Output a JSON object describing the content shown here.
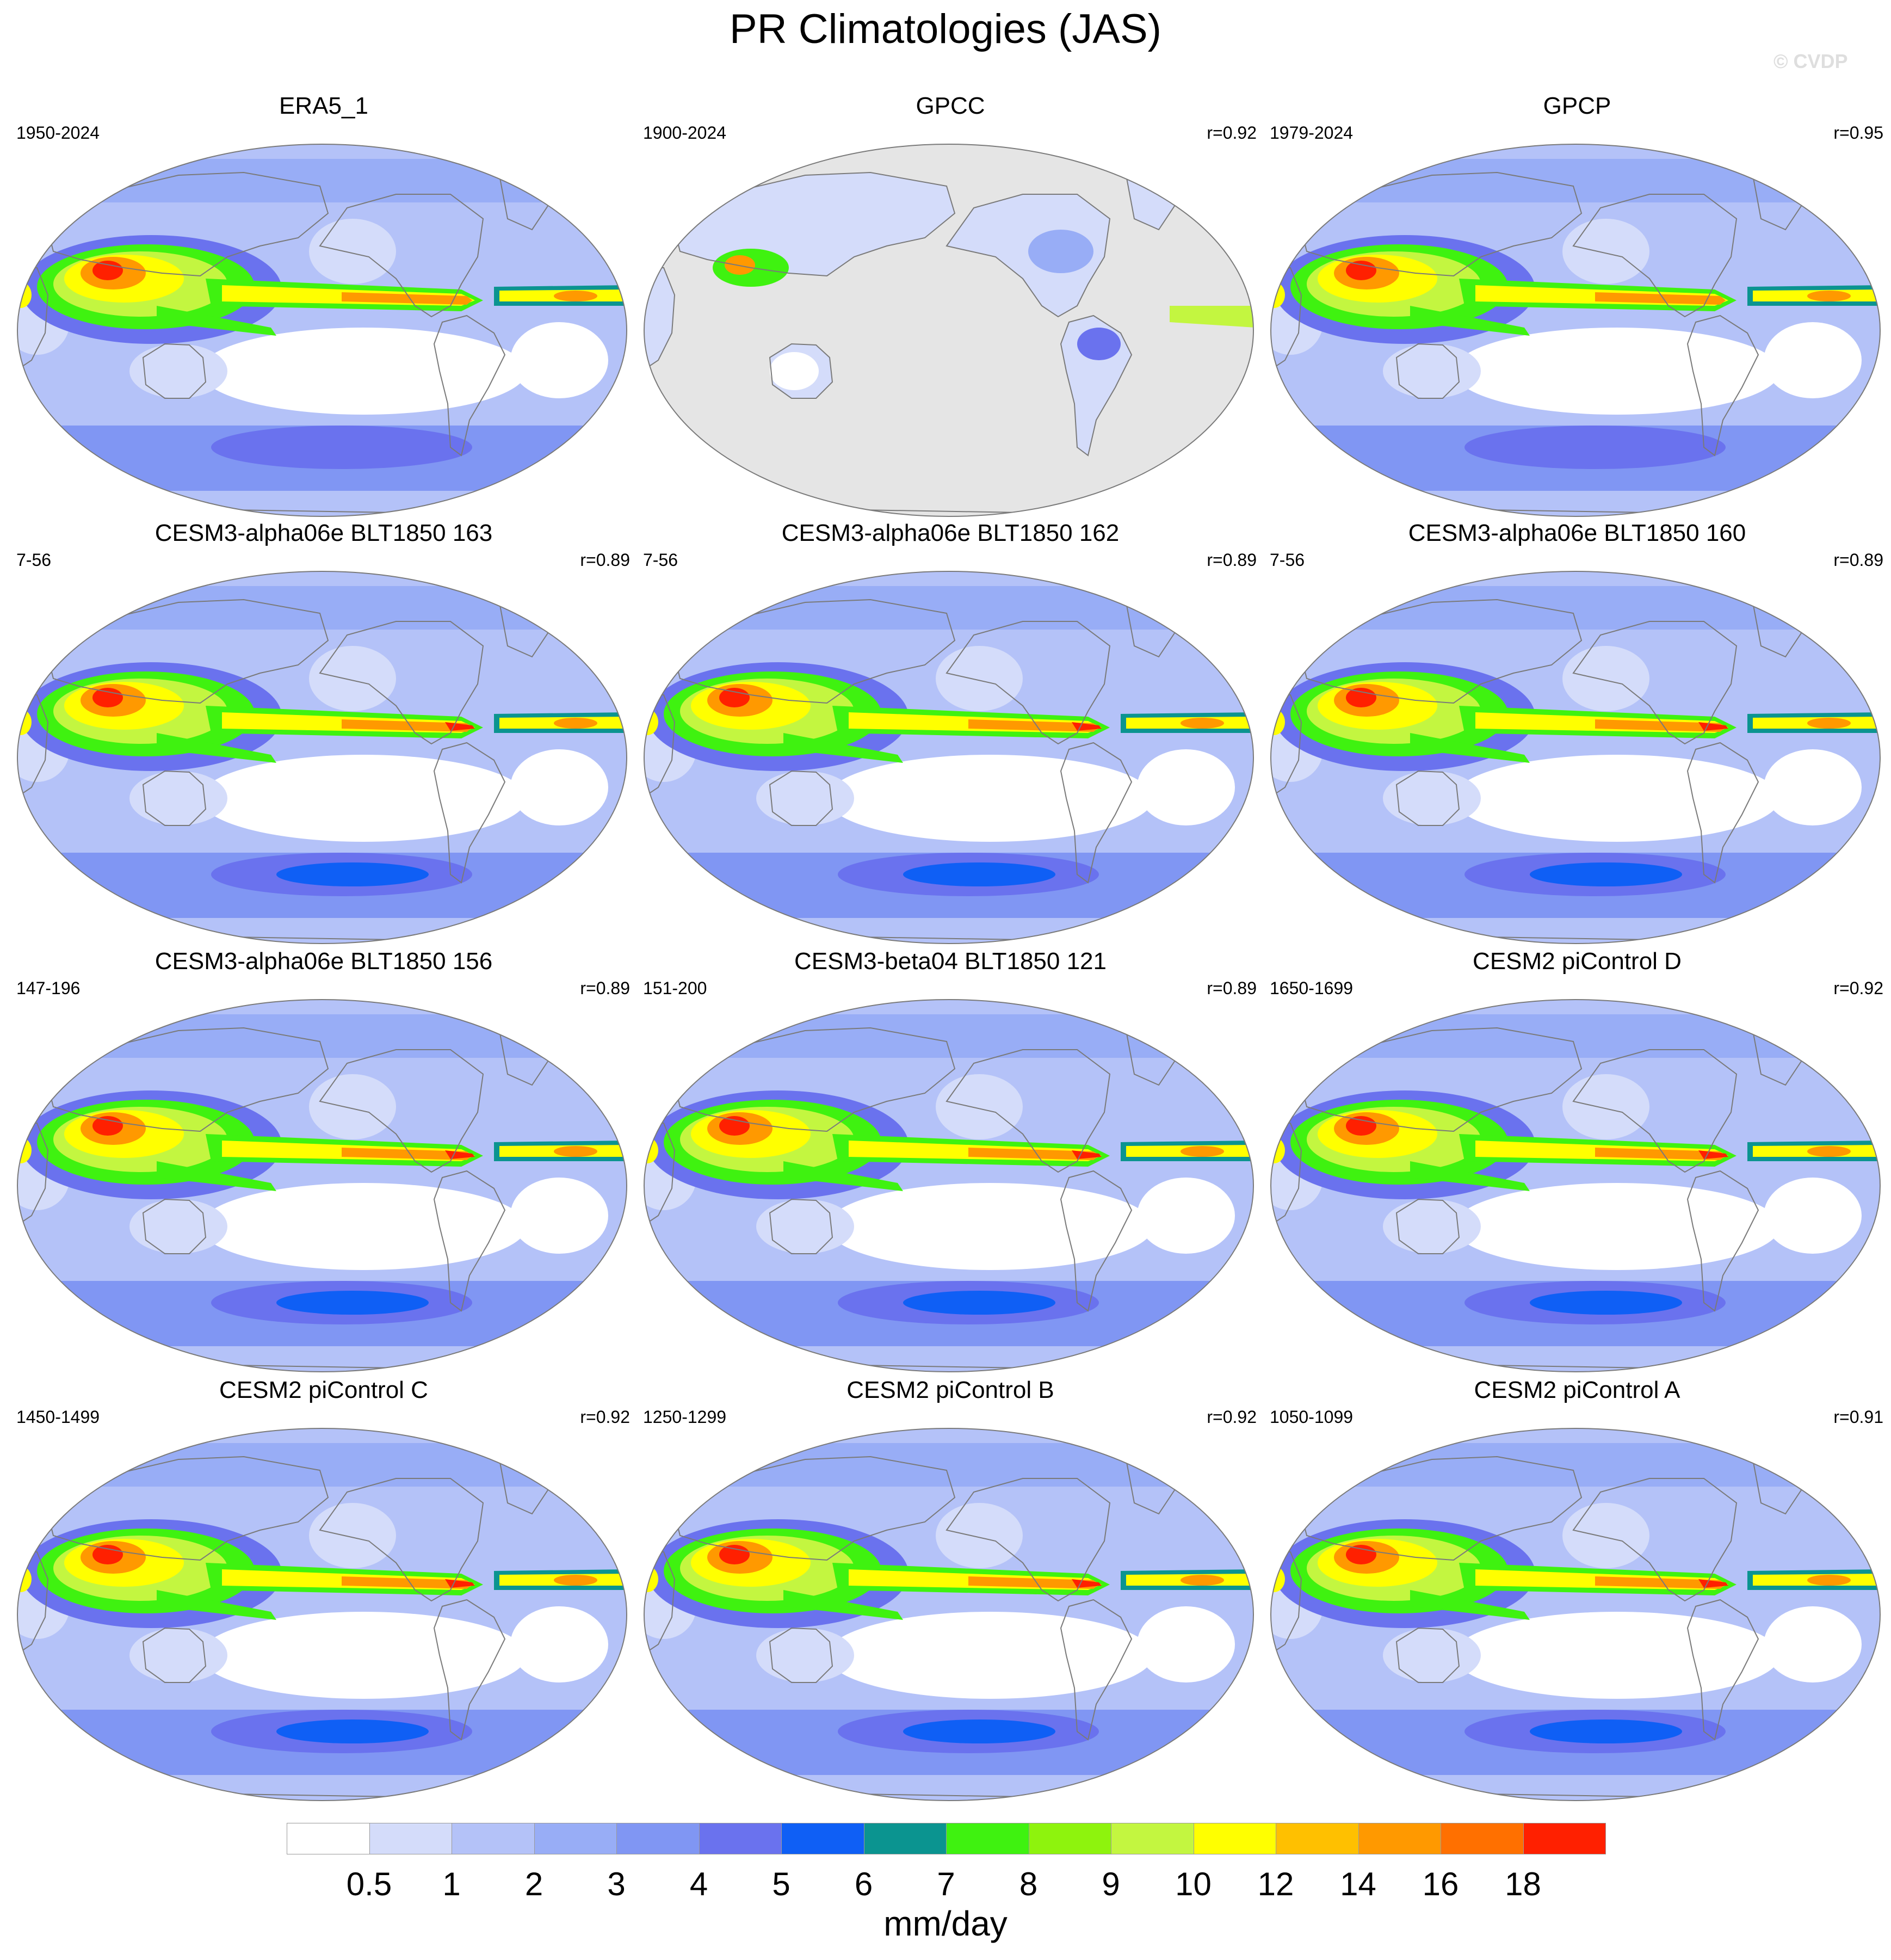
{
  "figure": {
    "title": "PR Climatologies (JAS)",
    "watermark": "© CVDP"
  },
  "panels": [
    {
      "title": "ERA5_1",
      "years": "1950-2024",
      "r": "",
      "variant": "era5"
    },
    {
      "title": "GPCC",
      "years": "1900-2024",
      "r": "r=0.92",
      "variant": "gpcc"
    },
    {
      "title": "GPCP",
      "years": "1979-2024",
      "r": "r=0.95",
      "variant": "gpcp"
    },
    {
      "title": "CESM3-alpha06e BLT1850 163",
      "years": "7-56",
      "r": "r=0.89",
      "variant": "model"
    },
    {
      "title": "CESM3-alpha06e BLT1850 162",
      "years": "7-56",
      "r": "r=0.89",
      "variant": "model"
    },
    {
      "title": "CESM3-alpha06e BLT1850 160",
      "years": "7-56",
      "r": "r=0.89",
      "variant": "model"
    },
    {
      "title": "CESM3-alpha06e BLT1850 156",
      "years": "147-196",
      "r": "r=0.89",
      "variant": "model"
    },
    {
      "title": "CESM3-beta04 BLT1850 121",
      "years": "151-200",
      "r": "r=0.89",
      "variant": "model"
    },
    {
      "title": "CESM2 piControl D",
      "years": "1650-1699",
      "r": "r=0.92",
      "variant": "model2"
    },
    {
      "title": "CESM2 piControl C",
      "years": "1450-1499",
      "r": "r=0.92",
      "variant": "model2"
    },
    {
      "title": "CESM2 piControl B",
      "years": "1250-1299",
      "r": "r=0.92",
      "variant": "model2"
    },
    {
      "title": "CESM2 piControl A",
      "years": "1050-1099",
      "r": "r=0.91",
      "variant": "model2"
    }
  ],
  "colorbar": {
    "units": "mm/day",
    "labels": [
      "0.5",
      "1",
      "2",
      "3",
      "4",
      "5",
      "6",
      "7",
      "8",
      "9",
      "10",
      "12",
      "14",
      "16",
      "18"
    ],
    "colors": [
      "#ffffff",
      "#d4dcfa",
      "#b4c2f8",
      "#98adf6",
      "#8096f3",
      "#6a72ee",
      "#0f5ff5",
      "#0b9490",
      "#3ff210",
      "#8ef30d",
      "#c3f640",
      "#ffff00",
      "#ffc000",
      "#ff9900",
      "#ff7000",
      "#ff2000"
    ]
  },
  "missing_color": "#e5e5e5"
}
